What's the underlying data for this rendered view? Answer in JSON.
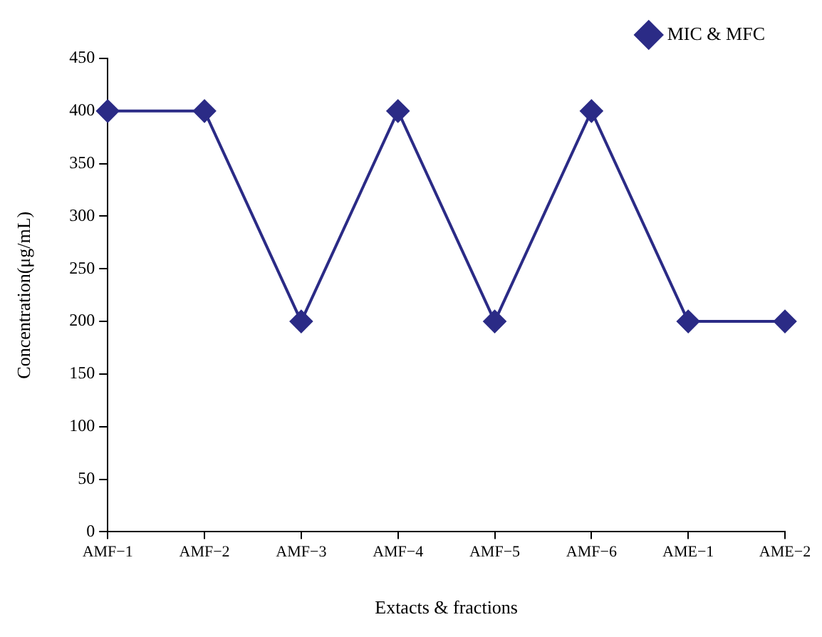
{
  "chart_data": {
    "type": "line",
    "xlabel": "Extacts & fractions",
    "ylabel": "Concentration(μg/mL)",
    "categories": [
      "AMF−1",
      "AMF−2",
      "AMF−3",
      "AMF−4",
      "AMF−5",
      "AMF−6",
      "AME−1",
      "AME−2"
    ],
    "series": [
      {
        "name": "MIC & MFC",
        "color": "#2b2b86",
        "values": [
          400,
          400,
          200,
          400,
          200,
          400,
          200,
          200
        ]
      }
    ],
    "ylim": [
      0,
      450
    ],
    "yticks": [
      0,
      50,
      100,
      150,
      200,
      250,
      300,
      350,
      400,
      450
    ],
    "grid": false,
    "legend": "top right",
    "marker": "diamond",
    "line_style": "solid"
  }
}
